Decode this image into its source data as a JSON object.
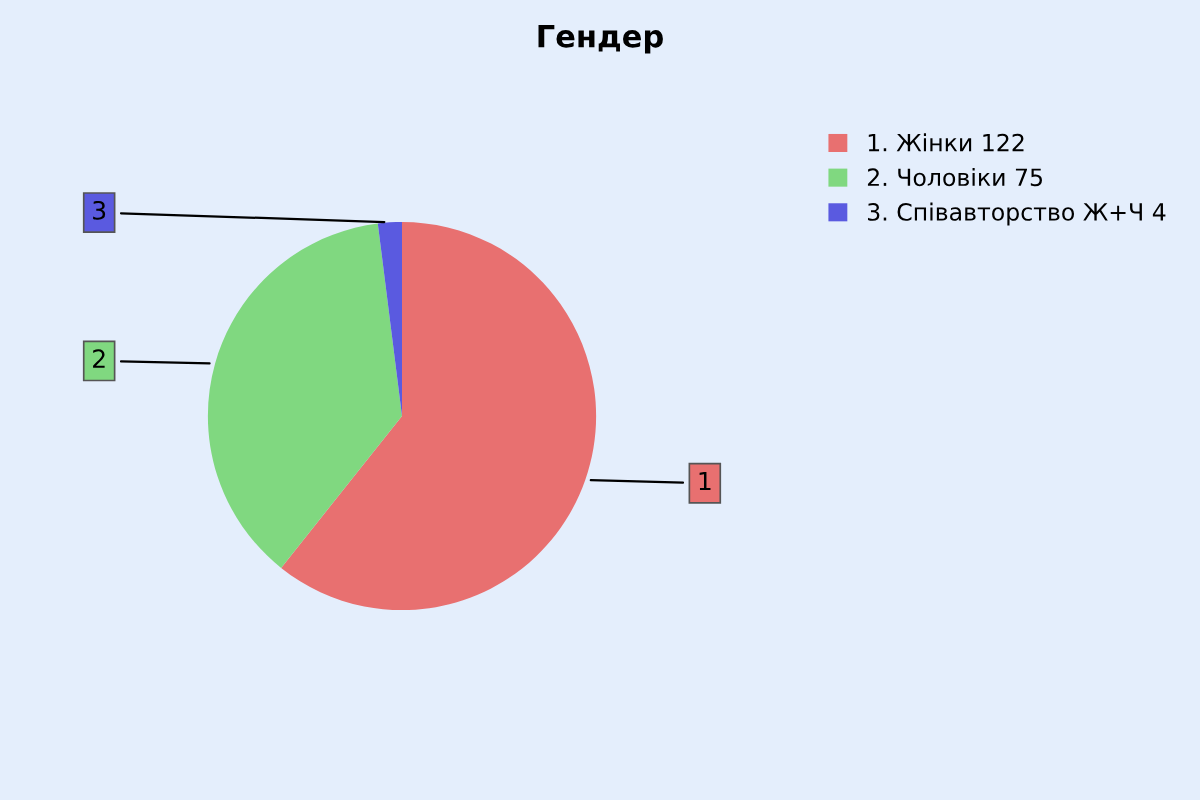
{
  "chart_data": {
    "type": "pie",
    "title": "Гендер",
    "categories": [
      "1. Жінки 122",
      "2. Чоловіки 75",
      "3. Співавторство Ж+Ч 4"
    ],
    "values": [
      122,
      75,
      4
    ],
    "colors": [
      "#e87070",
      "#80d880",
      "#5a5ae0"
    ],
    "annotations": [
      "1",
      "2",
      "3"
    ],
    "legend": "top right"
  }
}
